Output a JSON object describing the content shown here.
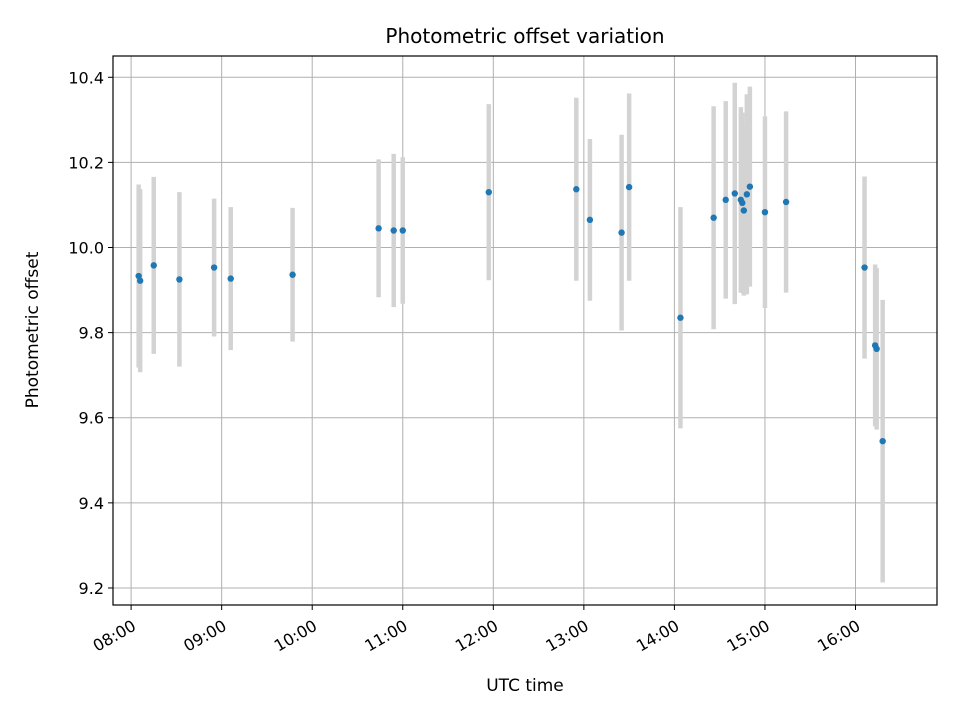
{
  "chart_data": {
    "type": "scatter",
    "title": "Photometric offset variation",
    "xlabel": "UTC time",
    "ylabel": "Photometric offset",
    "x_axis_type": "time",
    "xlim": [
      "07:48",
      "16:54"
    ],
    "ylim": [
      9.16,
      10.45
    ],
    "x_ticks": [
      "08:00",
      "09:00",
      "10:00",
      "11:00",
      "12:00",
      "13:00",
      "14:00",
      "15:00",
      "16:00"
    ],
    "y_ticks": [
      9.2,
      9.4,
      9.6,
      9.8,
      10.0,
      10.2,
      10.4
    ],
    "y_tick_labels": [
      "9.2",
      "9.4",
      "9.6",
      "9.8",
      "10.0",
      "10.2",
      "10.4"
    ],
    "grid": true,
    "point_color": "#1f77b4",
    "errorbar_color": "#d3d3d3",
    "points": [
      {
        "t": "08:05",
        "y": 9.933,
        "err": 0.215
      },
      {
        "t": "08:06",
        "y": 9.922,
        "err": 0.215
      },
      {
        "t": "08:15",
        "y": 9.958,
        "err": 0.208
      },
      {
        "t": "08:32",
        "y": 9.925,
        "err": 0.205
      },
      {
        "t": "08:55",
        "y": 9.953,
        "err": 0.162
      },
      {
        "t": "09:06",
        "y": 9.927,
        "err": 0.168
      },
      {
        "t": "09:47",
        "y": 9.936,
        "err": 0.157
      },
      {
        "t": "10:44",
        "y": 10.045,
        "err": 0.162
      },
      {
        "t": "10:54",
        "y": 10.04,
        "err": 0.18
      },
      {
        "t": "11:00",
        "y": 10.04,
        "err": 0.172
      },
      {
        "t": "11:57",
        "y": 10.13,
        "err": 0.207
      },
      {
        "t": "12:55",
        "y": 10.137,
        "err": 0.215
      },
      {
        "t": "13:04",
        "y": 10.065,
        "err": 0.19
      },
      {
        "t": "13:25",
        "y": 10.035,
        "err": 0.23
      },
      {
        "t": "13:30",
        "y": 10.142,
        "err": 0.22
      },
      {
        "t": "14:04",
        "y": 9.835,
        "err": 0.26
      },
      {
        "t": "14:26",
        "y": 10.07,
        "err": 0.262
      },
      {
        "t": "14:34",
        "y": 10.112,
        "err": 0.232
      },
      {
        "t": "14:40",
        "y": 10.127,
        "err": 0.26
      },
      {
        "t": "14:44",
        "y": 10.112,
        "err": 0.218
      },
      {
        "t": "14:45",
        "y": 10.105,
        "err": 0.212
      },
      {
        "t": "14:46",
        "y": 10.087,
        "err": 0.2
      },
      {
        "t": "14:48",
        "y": 10.125,
        "err": 0.235
      },
      {
        "t": "14:50",
        "y": 10.143,
        "err": 0.235
      },
      {
        "t": "15:00",
        "y": 10.083,
        "err": 0.225
      },
      {
        "t": "15:14",
        "y": 10.107,
        "err": 0.213
      },
      {
        "t": "16:06",
        "y": 9.953,
        "err": 0.214
      },
      {
        "t": "16:13",
        "y": 9.77,
        "err": 0.19
      },
      {
        "t": "16:14",
        "y": 9.762,
        "err": 0.19
      },
      {
        "t": "16:18",
        "y": 9.545,
        "err": 0.332
      }
    ]
  }
}
